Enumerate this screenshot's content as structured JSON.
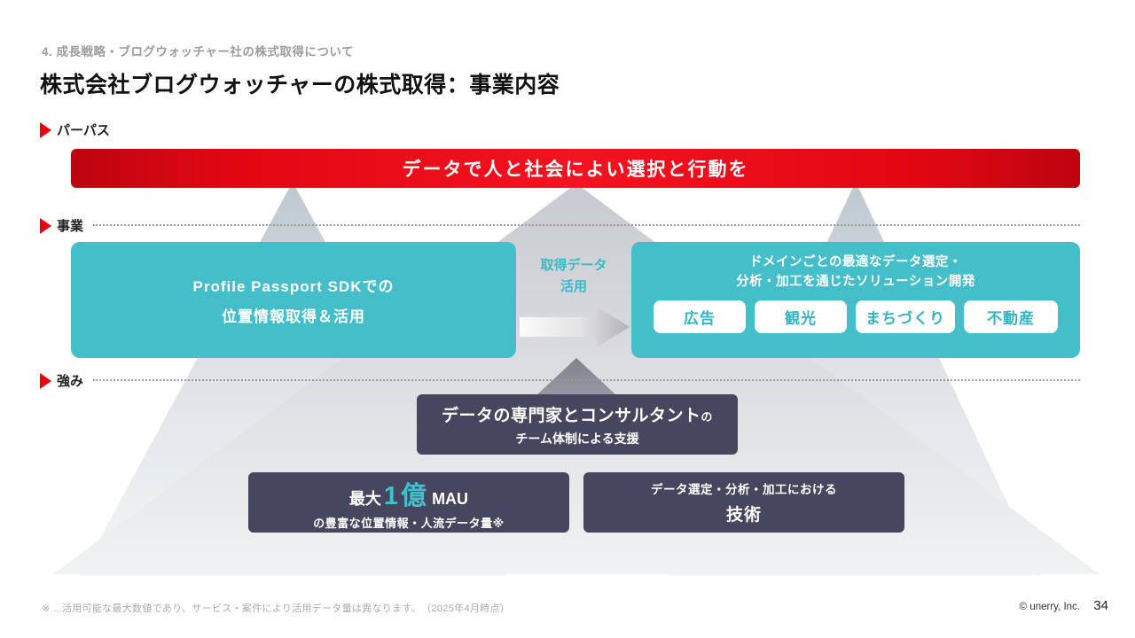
{
  "slide": {
    "section_label": "4. 成長戦略・ブログウォッチャー社の株式取得について",
    "title": "株式会社ブログウォッチャーの株式取得：事業内容",
    "footnote": "※ ...活用可能な最大数値であり、サービス・案件により活用データ量は異なります。　（2025年4月時点）",
    "copyright": "© unerry, Inc.",
    "page_number": "34"
  },
  "rows": {
    "purpose": {
      "label": "パーパス",
      "banner": "データで人と社会によい選択と行動を"
    },
    "business": {
      "label": "事業",
      "left_box": {
        "line1": "Profile Passport SDKでの",
        "line2": "位置情報取得＆活用"
      },
      "middle": {
        "line1": "取得データ",
        "line2": "活用"
      },
      "right_box": {
        "heading_line1": "ドメインごとの最適なデータ選定・",
        "heading_line2": "分析・加工を通じたソリューション開発",
        "tags": [
          "広告",
          "観光",
          "まちづくり",
          "不動産"
        ]
      }
    },
    "strength": {
      "label": "強み",
      "consultant_box": {
        "line1_main": "データの専門家とコンサルタント",
        "line1_suffix": "の",
        "line2": "チーム体制による支援"
      },
      "mau_box": {
        "prefix": "最大",
        "highlight": "1億",
        "suffix": "MAU",
        "line2": "の豊富な位置情報・人流データ量※"
      },
      "tech_box": {
        "line1": "データ選定・分析・加工における",
        "line2": "技術"
      }
    }
  },
  "colors": {
    "brand_red": "#e60012",
    "teal": "#44bfca",
    "dark_slate": "#46465f"
  }
}
